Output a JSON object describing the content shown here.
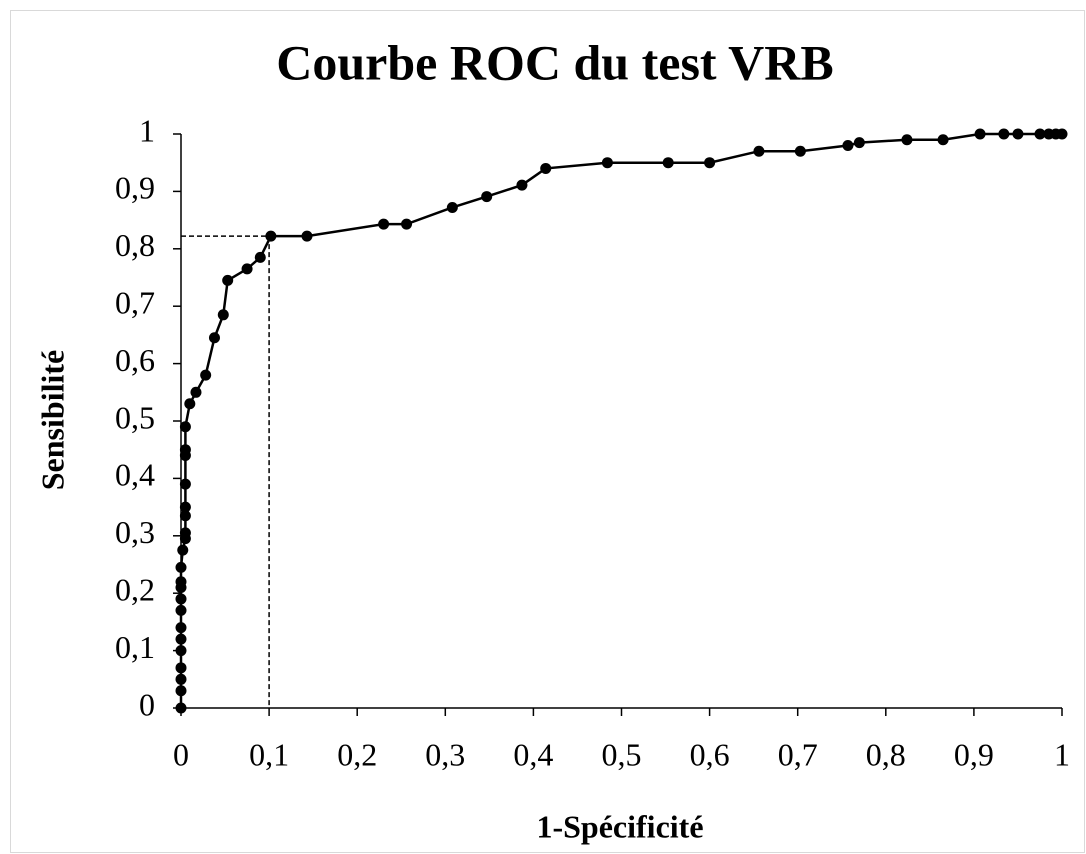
{
  "chart_data": {
    "type": "line",
    "title": "Courbe ROC du test VRB",
    "xlabel": "1-Spécificité",
    "ylabel": "Sensibilité",
    "x": [
      0,
      0,
      0,
      0,
      0,
      0,
      0,
      0,
      0,
      0,
      0,
      0,
      0.002,
      0.005,
      0.005,
      0.005,
      0.005,
      0.005,
      0.005,
      0.005,
      0.005,
      0.01,
      0.017,
      0.028,
      0.038,
      0.048,
      0.053,
      0.075,
      0.09,
      0.102,
      0.143,
      0.23,
      0.256,
      0.308,
      0.347,
      0.387,
      0.414,
      0.484,
      0.553,
      0.6,
      0.656,
      0.703,
      0.757,
      0.77,
      0.824,
      0.865,
      0.907,
      0.934,
      0.95,
      0.975,
      0.985,
      0.993,
      1
    ],
    "series": [
      {
        "name": "ROC",
        "color": "#000000",
        "values": [
          0,
          0.03,
          0.05,
          0.07,
          0.1,
          0.12,
          0.14,
          0.17,
          0.19,
          0.21,
          0.22,
          0.245,
          0.275,
          0.295,
          0.305,
          0.335,
          0.35,
          0.39,
          0.44,
          0.45,
          0.49,
          0.53,
          0.55,
          0.58,
          0.645,
          0.685,
          0.745,
          0.765,
          0.785,
          0.822,
          0.822,
          0.843,
          0.843,
          0.872,
          0.891,
          0.911,
          0.94,
          0.95,
          0.95,
          0.95,
          0.97,
          0.97,
          0.98,
          0.985,
          0.99,
          0.99,
          1,
          1,
          1,
          1,
          1,
          1,
          1
        ]
      }
    ],
    "reference_point": {
      "x": 0.1,
      "y": 0.822
    },
    "xlim": [
      0,
      1
    ],
    "ylim": [
      0,
      1
    ],
    "xticks": [
      0,
      {
        "value": 0.1,
        "label": "0,1"
      },
      {
        "value": 0.2,
        "label": "0,2"
      },
      {
        "value": 0.3,
        "label": "0,3"
      },
      {
        "value": 0.4,
        "label": "0,4"
      },
      {
        "value": 0.5,
        "label": "0,5"
      },
      {
        "value": 0.6,
        "label": "0,6"
      },
      {
        "value": 0.7,
        "label": "0,7"
      },
      {
        "value": 0.8,
        "label": "0,8"
      },
      {
        "value": 0.9,
        "label": "0,9"
      },
      1
    ],
    "yticks": [
      0,
      {
        "value": 0.1,
        "label": "0,1"
      },
      {
        "value": 0.2,
        "label": "0,2"
      },
      {
        "value": 0.3,
        "label": "0,3"
      },
      {
        "value": 0.4,
        "label": "0,4"
      },
      {
        "value": 0.5,
        "label": "0,5"
      },
      {
        "value": 0.6,
        "label": "0,6"
      },
      {
        "value": 0.7,
        "label": "0,7"
      },
      {
        "value": 0.8,
        "label": "0,8"
      },
      {
        "value": 0.9,
        "label": "0,9"
      },
      1
    ],
    "grid": false
  }
}
